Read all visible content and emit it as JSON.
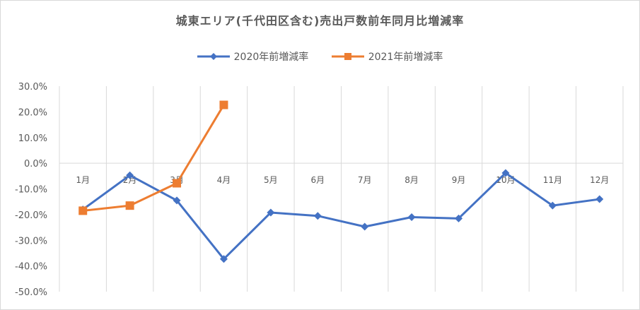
{
  "chart_data": {
    "type": "line",
    "title": "城東エリア(千代田区含む)売出戸数前年同月比増減率",
    "xlabel": "",
    "ylabel": "",
    "categories": [
      "1月",
      "2月",
      "3月",
      "4月",
      "5月",
      "6月",
      "7月",
      "8月",
      "9月",
      "10月",
      "11月",
      "12月"
    ],
    "ylim": [
      -0.5,
      0.3
    ],
    "yticks": [
      0.3,
      0.2,
      0.1,
      0.0,
      -0.1,
      -0.2,
      -0.3,
      -0.4,
      -0.5
    ],
    "ytick_labels": [
      "30.0%",
      "20.0%",
      "10.0%",
      "0.0%",
      "-10.0%",
      "-20.0%",
      "-30.0%",
      "-40.0%",
      "-50.0%"
    ],
    "grid": "vertical",
    "legend": "top",
    "series": [
      {
        "name": "2020年前増減率",
        "color": "#4472C4",
        "marker": "diamond",
        "values": [
          -0.18,
          -0.047,
          -0.145,
          -0.373,
          -0.192,
          -0.205,
          -0.247,
          -0.21,
          -0.215,
          -0.038,
          -0.165,
          -0.14
        ]
      },
      {
        "name": "2021年前増減率",
        "color": "#ED7D31",
        "marker": "square",
        "values": [
          -0.185,
          -0.165,
          -0.078,
          0.227,
          null,
          null,
          null,
          null,
          null,
          null,
          null,
          null
        ]
      }
    ]
  }
}
